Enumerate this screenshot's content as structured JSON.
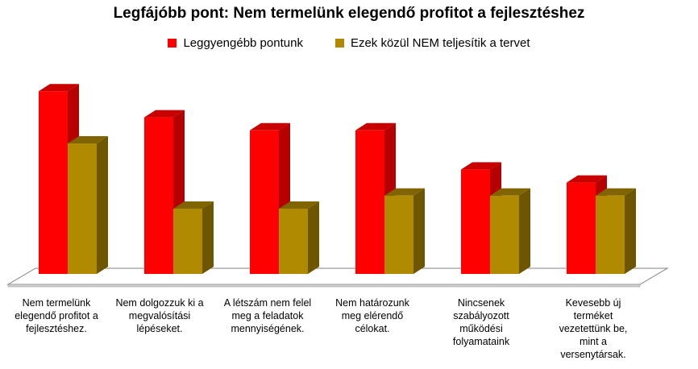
{
  "chart_data": {
    "type": "bar",
    "title": "Legfájóbb pont: Nem termelünk elegendő profitot a fejlesztéshez",
    "categories": [
      "Nem termelünk elegendő profitot a fejlesztéshez.",
      "Nem dolgozzuk ki a megvalósítási lépéseket.",
      "A létszám nem felel meg a feladatok mennyiségének.",
      "Nem határozunk meg elérendő célokat.",
      "Nincsenek szabályozott működési folyamataink",
      "Kevesebb új terméket vezetettünk be, mint a versenytársak."
    ],
    "category_lines": [
      [
        "Nem termelünk",
        "elegendő profitot a",
        "fejlesztéshez."
      ],
      [
        "Nem dolgozzuk ki a",
        "megvalósítási",
        "lépéseket."
      ],
      [
        "A létszám nem felel",
        "meg a feladatok",
        "mennyiségének."
      ],
      [
        "Nem határozunk",
        "meg elérendő",
        "célokat."
      ],
      [
        "Nincsenek",
        "szabályozott",
        "működési",
        "folyamataink"
      ],
      [
        "Kevesebb új",
        "terméket",
        "vezetettünk be,",
        "mint a",
        "versenytársak."
      ]
    ],
    "series": [
      {
        "name": "Leggyengébb pontunk",
        "color": "#ff0000",
        "values": [
          14,
          12,
          11,
          11,
          8,
          7
        ]
      },
      {
        "name": "Ezek közül NEM teljesítik  a tervet",
        "color": "#b08a00",
        "values": [
          10,
          5,
          5,
          6,
          6,
          6
        ]
      }
    ],
    "ylim": [
      0,
      15
    ],
    "grid": false,
    "legend_position": "top"
  }
}
